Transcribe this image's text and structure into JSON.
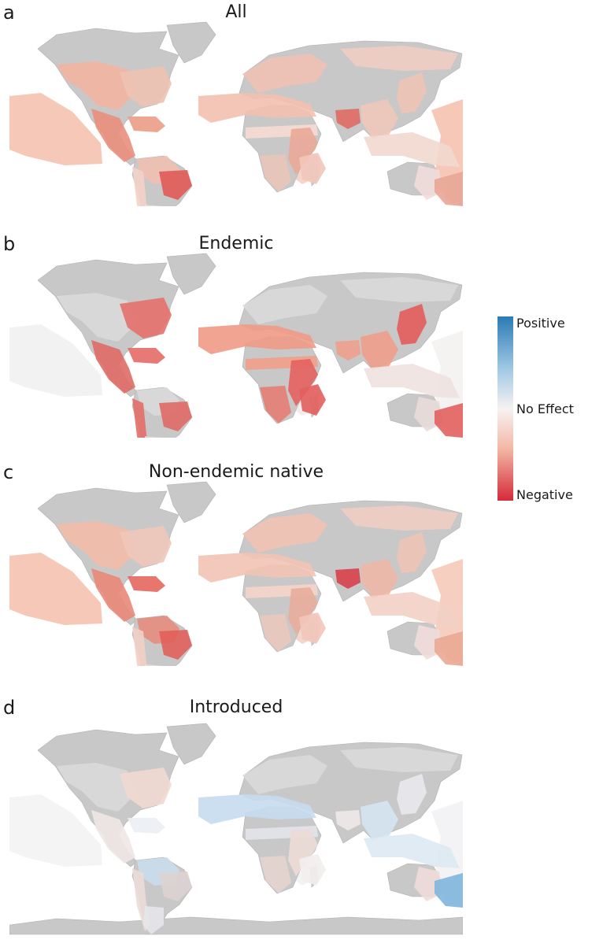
{
  "panels": [
    {
      "letter": "a",
      "title": "All",
      "regions": {
        "na-west": "#f2b4a1",
        "na-east": "#eec2b1",
        "central-america": "#e98f7c",
        "caribbean": "#ea9c86",
        "amazon": "#f0c0b0",
        "brazil-south": "#e05a57",
        "andes": "#f3d2c8",
        "patagonia": "#eedcd8",
        "europe": "#efc1b4",
        "mediterranean": "#f2c0b0",
        "sahel": "#f6dcd3",
        "africa-east": "#eaa996",
        "africa-south": "#e9c4b8",
        "madagascar": "#f2c7bb",
        "india": "#df6a63",
        "indochina": "#efc6b9",
        "japan": "#eec3b6",
        "siberia": "#f0cdc2",
        "indonesia": "#f2d8cf",
        "australia-east": "#efddd9",
        "new-zealand": "#e8a696",
        "pacific-west": "#f5c8b8",
        "pacific-east": "#f5c8b8",
        "indian-ocean": "#f5d5c9"
      }
    },
    {
      "letter": "b",
      "title": "Endemic",
      "regions": {
        "na-west": "#d9d9d9",
        "na-east": "#e5706a",
        "central-america": "#e06a65",
        "caribbean": "#e46b66",
        "amazon": "#d9d9d9",
        "brazil-south": "#e06a65",
        "andes": "#e26e68",
        "patagonia": "#e9d6d3",
        "europe": "#d9d9d9",
        "mediterranean": "#ee9a85",
        "sahel": "#ef9e8a",
        "africa-east": "#e4625f",
        "africa-south": "#e47d74",
        "madagascar": "#e25f5d",
        "india": "#eea08c",
        "indochina": "#ee9d8b",
        "japan": "#e25c5b",
        "siberia": "#d9d9d9",
        "indonesia": "#eee2e0",
        "australia-east": "#e9dcda",
        "new-zealand": "#e2605e",
        "pacific-west": "#f3f2f2",
        "pacific-east": "#f5f2f2",
        "indian-ocean": "#f2ecea"
      }
    },
    {
      "letter": "c",
      "title": "Non-endemic native",
      "regions": {
        "na-west": "#f2bba8",
        "na-east": "#f0c7b9",
        "central-america": "#e98778",
        "caribbean": "#e4675f",
        "amazon": "#e68d7d",
        "brazil-south": "#e0605a",
        "andes": "#f2cfc4",
        "patagonia": "#eedcd8",
        "europe": "#efc2b3",
        "mediterranean": "#f1c3b3",
        "sahel": "#f4d4c9",
        "africa-east": "#e9ad9b",
        "africa-south": "#eac8bd",
        "madagascar": "#f2c7bb",
        "india": "#d7404a",
        "indochina": "#eeb7a6",
        "japan": "#eec3b6",
        "siberia": "#f0cdc2",
        "indonesia": "#f2d0c5",
        "australia-east": "#efddd9",
        "new-zealand": "#eaa894",
        "pacific-west": "#f5c8b8",
        "pacific-east": "#f6cfc0",
        "indian-ocean": "#f5d5c9"
      }
    },
    {
      "letter": "d",
      "title": "Introduced",
      "regions": {
        "na-west": "#d9d9d9",
        "na-east": "#efd9d2",
        "central-america": "#efe6e6",
        "caribbean": "#ebeef3",
        "amazon": "#c9dceb",
        "brazil-south": "#ddd2d2",
        "andes": "#eadcd8",
        "patagonia": "#e6e6ea",
        "europe": "#d9d9d9",
        "mediterranean": "#c5dcee",
        "sahel": "#e2e4ea",
        "africa-east": "#eddcd7",
        "africa-south": "#e6d4cf",
        "madagascar": "#f2eeed",
        "india": "#eee8e8",
        "indochina": "#d4e4ef",
        "japan": "#e9e9ed",
        "siberia": "#d9d9d9",
        "indonesia": "#dde9f2",
        "australia-east": "#eedcd8",
        "new-zealand": "#7fb6dd",
        "pacific-west": "#f4f4f5",
        "pacific-east": "#f3f3f5",
        "indian-ocean": "#f3f3f4"
      }
    }
  ],
  "legend": {
    "positive": "Positive",
    "no_effect": "No Effect",
    "negative": "Negative",
    "colors": {
      "positive": "#2a7bb5",
      "no_effect": "#f6f2f2",
      "negative": "#d52a3a"
    }
  },
  "colors": {
    "land": "#c8c8c8",
    "ocean": "#ffffff"
  }
}
